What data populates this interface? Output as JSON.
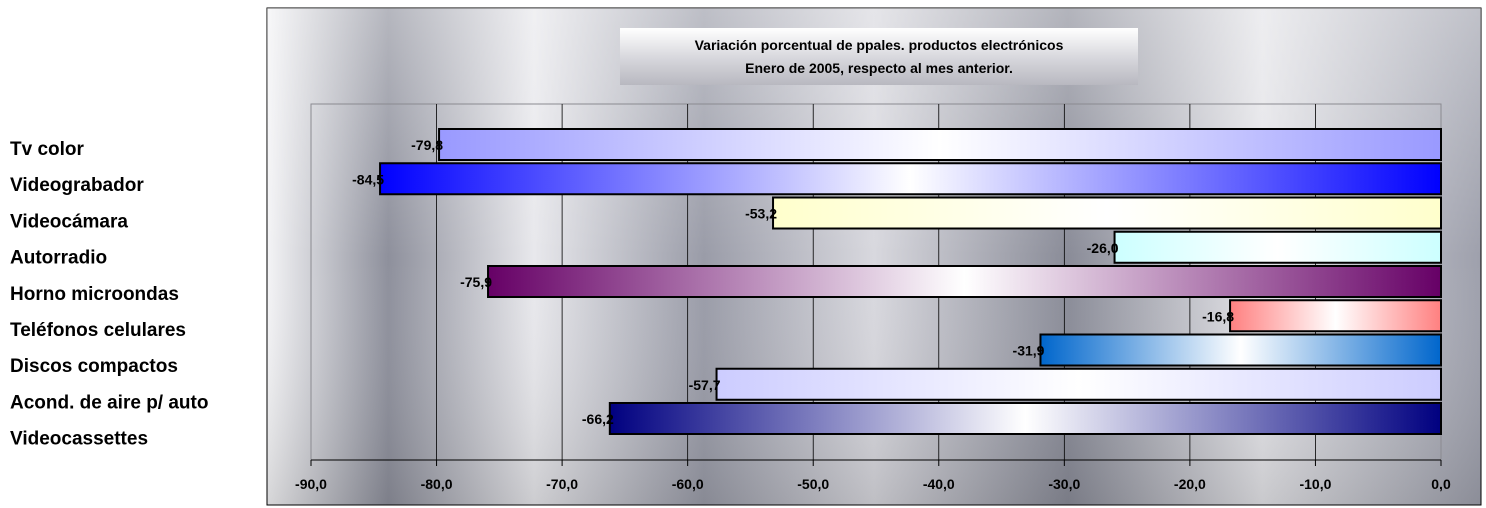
{
  "chart_data": {
    "type": "bar",
    "orientation": "horizontal",
    "title": "Variación porcentual de ppales. productos electrónicos",
    "subtitle": "Enero de 2005, respecto al mes anterior.",
    "categories": [
      "Tv color",
      "Videograbador",
      "Videocámara",
      "Autorradio",
      "Horno microondas",
      "Teléfonos celulares",
      "Discos compactos",
      "Acond. de aire p/ auto",
      "Videocassettes"
    ],
    "values": [
      -79.8,
      -84.5,
      -53.2,
      -26.0,
      -75.9,
      -16.8,
      -31.9,
      -57.7,
      -66.2
    ],
    "data_labels": [
      "-79,8",
      "-84,5",
      "-53,2",
      "-26,0",
      "-75,9",
      "-16,8",
      "-31,9",
      "-57,7",
      "-66,2"
    ],
    "bar_colors": [
      "#9999ff",
      "#0000ff",
      "#ffffcc",
      "#ccffff",
      "#660066",
      "#ff8080",
      "#0066cc",
      "#ccccff",
      "#000080"
    ],
    "xlim": [
      -90,
      0
    ],
    "xticks": [
      -90,
      -80,
      -70,
      -60,
      -50,
      -40,
      -30,
      -20,
      -10,
      0
    ],
    "xtick_labels": [
      "-90,0",
      "-80,0",
      "-70,0",
      "-60,0",
      "-50,0",
      "-40,0",
      "-30,0",
      "-20,0",
      "-10,0",
      "0,0"
    ],
    "xlabel": "",
    "ylabel": "",
    "grid": true,
    "legend": "none"
  }
}
